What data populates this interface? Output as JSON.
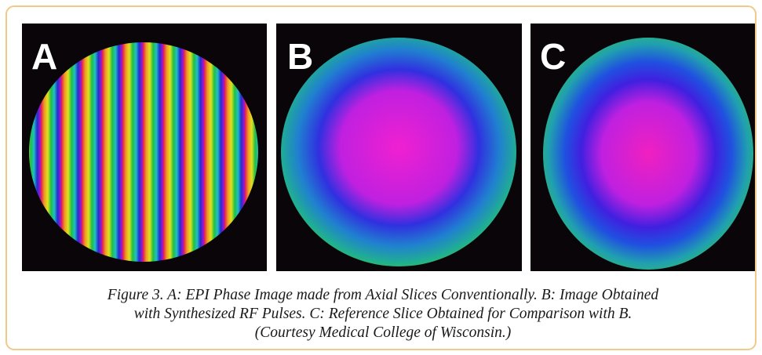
{
  "figure": {
    "panels": [
      {
        "label": "A"
      },
      {
        "label": "B"
      },
      {
        "label": "C"
      }
    ],
    "caption": [
      "Figure 3. A: EPI Phase Image made from Axial Slices Conventionally. B: Image Obtained",
      "with Synthesized RF Pulses. C: Reference Slice Obtained for Comparison with B.",
      "(Courtesy Medical College of Wisconsin.)"
    ]
  }
}
